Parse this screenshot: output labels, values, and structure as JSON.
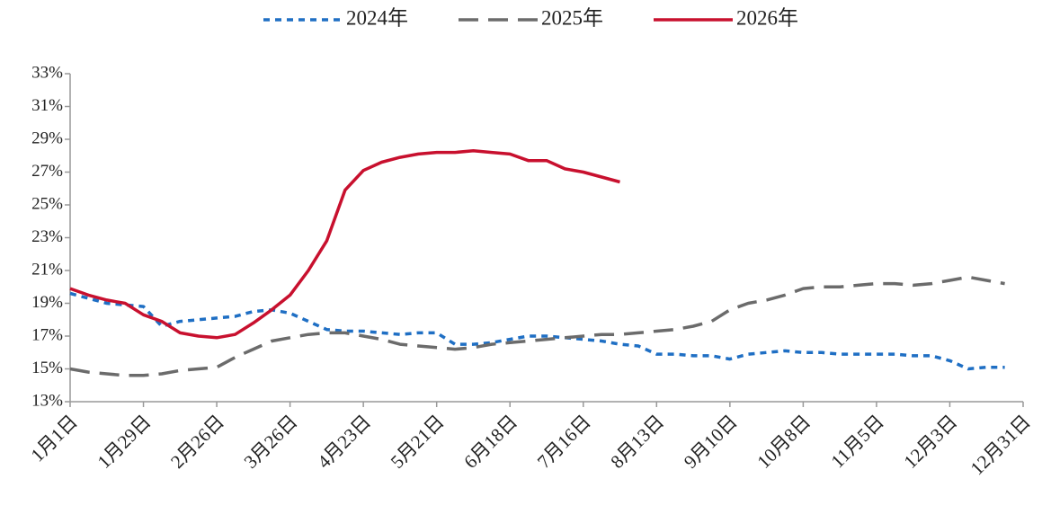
{
  "chart_data": {
    "type": "line",
    "categories": [
      "1月1日",
      null,
      null,
      null,
      "1月29日",
      null,
      null,
      null,
      "2月26日",
      null,
      null,
      null,
      "3月26日",
      null,
      null,
      null,
      "4月23日",
      null,
      null,
      null,
      "5月21日",
      null,
      null,
      null,
      "6月18日",
      null,
      null,
      null,
      "7月16日",
      null,
      null,
      null,
      "8月13日",
      null,
      null,
      null,
      "9月10日",
      null,
      null,
      null,
      "10月8日",
      null,
      null,
      null,
      "11月5日",
      null,
      null,
      null,
      "12月3日",
      null,
      null,
      null,
      "12月31日"
    ],
    "series": [
      {
        "name": "2024年",
        "color": "#1f6fc4",
        "style": "dotted",
        "values": [
          19.6,
          19.3,
          19.0,
          18.9,
          18.8,
          17.6,
          17.9,
          18.0,
          18.1,
          18.2,
          18.5,
          18.6,
          18.4,
          17.9,
          17.4,
          17.3,
          17.3,
          17.2,
          17.1,
          17.2,
          17.2,
          16.5,
          16.5,
          16.6,
          16.8,
          17.0,
          17.0,
          16.9,
          16.8,
          16.7,
          16.5,
          16.4,
          15.9,
          15.9,
          15.8,
          15.8,
          15.6,
          15.9,
          16.0,
          16.1,
          16.0,
          16.0,
          15.9,
          15.9,
          15.9,
          15.9,
          15.8,
          15.8,
          15.5,
          15.0,
          15.1,
          15.1,
          null
        ]
      },
      {
        "name": "2025年",
        "color": "#6b6b6b",
        "style": "dashed",
        "values": [
          15.0,
          14.8,
          14.7,
          14.6,
          14.6,
          14.7,
          14.9,
          15.0,
          15.1,
          15.7,
          16.2,
          16.7,
          16.9,
          17.1,
          17.2,
          17.2,
          17.0,
          16.8,
          16.5,
          16.4,
          16.3,
          16.2,
          16.3,
          16.5,
          16.6,
          16.7,
          16.8,
          16.9,
          17.0,
          17.1,
          17.1,
          17.2,
          17.3,
          17.4,
          17.6,
          17.9,
          18.6,
          19.0,
          19.2,
          19.5,
          19.9,
          20.0,
          20.0,
          20.1,
          20.2,
          20.2,
          20.1,
          20.2,
          20.4,
          20.6,
          20.4,
          20.2,
          null
        ]
      },
      {
        "name": "2026年",
        "color": "#c8102e",
        "style": "solid",
        "values": [
          19.9,
          19.5,
          19.2,
          19.0,
          18.3,
          17.9,
          17.2,
          17.0,
          16.9,
          17.1,
          17.8,
          18.6,
          19.5,
          21.0,
          22.8,
          25.9,
          27.1,
          27.6,
          27.9,
          28.1,
          28.2,
          28.2,
          28.3,
          28.2,
          28.1,
          27.7,
          27.7,
          27.2,
          27.0,
          26.7,
          26.4,
          null,
          null,
          null,
          null,
          null,
          null,
          null,
          null,
          null,
          null,
          null,
          null,
          null,
          null,
          null,
          null,
          null,
          null,
          null,
          null,
          null,
          null
        ]
      }
    ],
    "ylim": [
      13,
      33
    ],
    "yticks": [
      {
        "value": 13,
        "label": "13%"
      },
      {
        "value": 15,
        "label": "15%"
      },
      {
        "value": 17,
        "label": "17%"
      },
      {
        "value": 19,
        "label": "19%"
      },
      {
        "value": 21,
        "label": "21%"
      },
      {
        "value": 23,
        "label": "23%"
      },
      {
        "value": 25,
        "label": "25%"
      },
      {
        "value": 27,
        "label": "27%"
      },
      {
        "value": 29,
        "label": "29%"
      },
      {
        "value": 31,
        "label": "31%"
      },
      {
        "value": 33,
        "label": "33%"
      }
    ],
    "legend": "top"
  }
}
